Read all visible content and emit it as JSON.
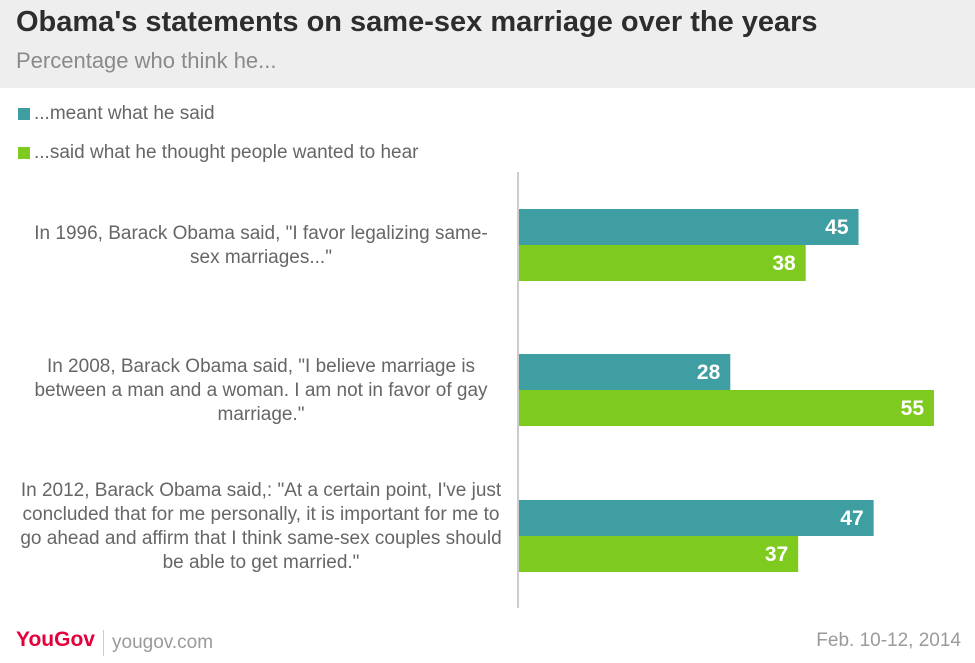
{
  "header": {
    "title": "Obama's statements on same-sex marriage over the years",
    "subtitle": "Percentage who think he..."
  },
  "legend": [
    {
      "label": "...meant what he said",
      "color": "#3f9ea2"
    },
    {
      "label": "...said what he thought people wanted to hear",
      "color": "#7fca1e"
    }
  ],
  "chart_data": {
    "type": "bar",
    "orientation": "horizontal",
    "title": "Obama's statements on same-sex marriage over the years",
    "subtitle": "Percentage who think he...",
    "categories": [
      "In 1996, Barack Obama said, \"I favor legalizing same-sex marriages...\"",
      "In 2008, Barack Obama said, \"I believe marriage is between a man and a woman. I am not in favor of gay marriage.\"",
      "In 2012, Barack Obama said,: \"At a certain point, I've just concluded that for me personally, it is important for me to go ahead and affirm that I think same-sex couples should be able to get married.\""
    ],
    "series": [
      {
        "name": "...meant what he said",
        "color": "#3f9ea2",
        "values": [
          45,
          28,
          47
        ]
      },
      {
        "name": "...said what he thought people wanted to hear",
        "color": "#7fca1e",
        "values": [
          38,
          55,
          37
        ]
      }
    ],
    "xlim": [
      0,
      55
    ],
    "grid": false,
    "legend_position": "top-left",
    "data_labels": true
  },
  "footer": {
    "brand": "YouGov",
    "separator": "|",
    "url": "yougov.com",
    "date": "Feb. 10-12, 2014"
  }
}
